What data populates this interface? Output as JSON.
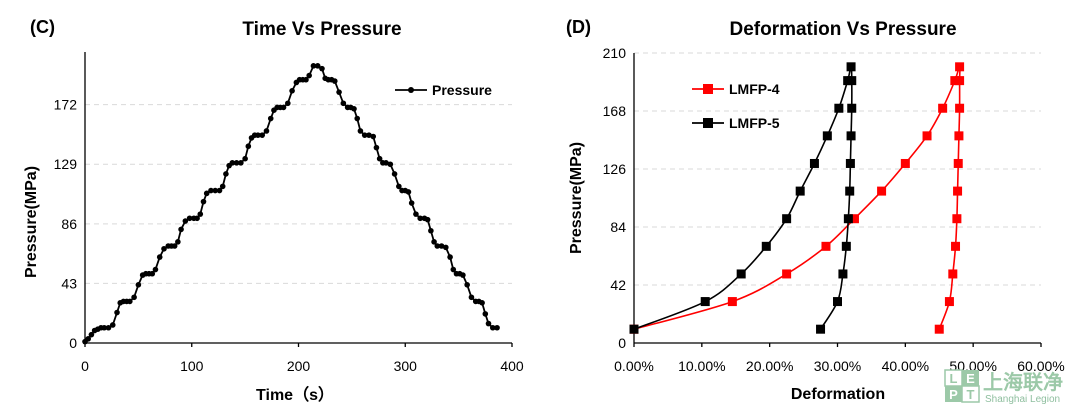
{
  "chart_data": [
    {
      "panel_label": "(C)",
      "type": "line",
      "title": "Time Vs Pressure",
      "xlabel": "Time（s）",
      "ylabel": "Pressure(MPa)",
      "xlim": [
        0,
        400
      ],
      "ylim": [
        0,
        210
      ],
      "xticks": [
        0,
        100,
        200,
        300,
        400
      ],
      "yticks": [
        0,
        43,
        86,
        129,
        172
      ],
      "legend": "top-right",
      "series": [
        {
          "name": "Pressure",
          "color": "#000000",
          "marker": "circle",
          "x": [
            0,
            3,
            6,
            9,
            12,
            15,
            18,
            22,
            26,
            30,
            33,
            36,
            39,
            42,
            46,
            50,
            54,
            57,
            60,
            63,
            66,
            70,
            74,
            78,
            81,
            84,
            87,
            90,
            94,
            98,
            102,
            105,
            108,
            111,
            114,
            118,
            122,
            126,
            129,
            132,
            135,
            138,
            142,
            146,
            150,
            153,
            156,
            159,
            162,
            166,
            170,
            174,
            177,
            180,
            183,
            186,
            190,
            194,
            198,
            201,
            204,
            207,
            210,
            214,
            218,
            222,
            225,
            228,
            231,
            234,
            238,
            242,
            246,
            249,
            252,
            255,
            258,
            262,
            266,
            270,
            273,
            276,
            279,
            282,
            286,
            290,
            294,
            297,
            300,
            303,
            306,
            310,
            314,
            318,
            321,
            324,
            327,
            330,
            334,
            338,
            342,
            345,
            348,
            351,
            354,
            358,
            362,
            366,
            369,
            372,
            375,
            378,
            382,
            386
          ],
          "y": [
            1,
            3,
            6,
            9,
            10,
            11,
            11,
            11,
            13,
            22,
            29,
            30,
            30,
            30,
            33,
            42,
            49,
            50,
            50,
            50,
            53,
            62,
            68,
            70,
            70,
            70,
            73,
            82,
            88,
            90,
            90,
            90,
            93,
            102,
            108,
            110,
            110,
            110,
            113,
            122,
            128,
            130,
            130,
            130,
            133,
            142,
            148,
            150,
            150,
            150,
            153,
            162,
            168,
            170,
            170,
            170,
            173,
            182,
            188,
            190,
            190,
            190,
            193,
            200,
            200,
            198,
            191,
            190,
            190,
            189,
            181,
            173,
            170,
            170,
            169,
            162,
            153,
            150,
            150,
            149,
            141,
            133,
            130,
            130,
            129,
            122,
            113,
            110,
            110,
            109,
            101,
            93,
            90,
            90,
            89,
            81,
            73,
            70,
            70,
            69,
            62,
            53,
            50,
            50,
            49,
            42,
            33,
            30,
            30,
            29,
            21,
            14,
            11,
            11
          ]
        }
      ]
    },
    {
      "panel_label": "(D)",
      "type": "line",
      "title": "Deformation Vs Pressure",
      "xlabel": "Deformation",
      "ylabel": "Pressure(MPa)",
      "xlim": [
        0,
        0.6
      ],
      "ylim": [
        0,
        210
      ],
      "xticks": [
        0,
        0.1,
        0.2,
        0.3,
        0.4,
        0.5,
        0.6
      ],
      "xtick_labels": [
        "0.00%",
        "10.00%",
        "20.00%",
        "30.00%",
        "40.00%",
        "50.00%",
        "60.00%"
      ],
      "yticks": [
        0,
        42,
        84,
        126,
        168,
        210
      ],
      "legend": "top-left",
      "series": [
        {
          "name": "LMFP-4",
          "color": "#ff0000",
          "marker": "square",
          "x": [
            0.0,
            0.145,
            0.225,
            0.283,
            0.325,
            0.365,
            0.4,
            0.432,
            0.455,
            0.473,
            0.48,
            0.48,
            0.48,
            0.479,
            0.478,
            0.477,
            0.476,
            0.474,
            0.47,
            0.465,
            0.45
          ],
          "y": [
            10,
            30,
            50,
            70,
            90,
            110,
            130,
            150,
            170,
            190,
            200,
            190,
            170,
            150,
            130,
            110,
            90,
            70,
            50,
            30,
            10
          ]
        },
        {
          "name": "LMFP-5",
          "color": "#000000",
          "marker": "square",
          "x": [
            0.0,
            0.105,
            0.158,
            0.195,
            0.225,
            0.245,
            0.266,
            0.285,
            0.302,
            0.315,
            0.32,
            0.321,
            0.321,
            0.32,
            0.319,
            0.318,
            0.316,
            0.313,
            0.308,
            0.3,
            0.275
          ],
          "y": [
            10,
            30,
            50,
            70,
            90,
            110,
            130,
            150,
            170,
            190,
            200,
            190,
            170,
            150,
            130,
            110,
            90,
            70,
            50,
            30,
            10
          ]
        }
      ]
    }
  ],
  "watermark": {
    "letters": [
      "L",
      "E",
      "P",
      "T"
    ],
    "chinese": "上海联净",
    "english": "Shanghai Legion"
  }
}
